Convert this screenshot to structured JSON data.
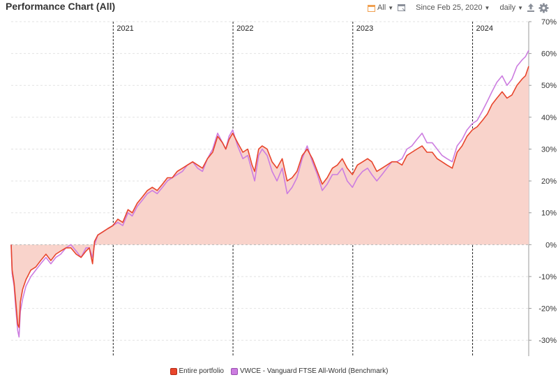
{
  "header": {
    "title": "Performance Chart (All)",
    "range_label": "All",
    "since_label": "Since Feb 25, 2020",
    "interval_label": "daily"
  },
  "colors": {
    "portfolio": "#e8452c",
    "portfolio_fill": "#f9d3cb",
    "benchmark": "#cc7de0",
    "grid": "#e2e2e2",
    "year_line": "#222222",
    "accent_orange": "#f0a050",
    "icon_grey": "#8a8f99"
  },
  "icons": [
    "calendar-icon",
    "date-range-icon",
    "export-icon",
    "gear-icon"
  ],
  "chart_data": {
    "type": "line",
    "y_unit": "%",
    "y_range": [
      -35,
      70
    ],
    "y_ticks": [
      70,
      60,
      50,
      40,
      30,
      20,
      10,
      0,
      -10,
      -20,
      -30
    ],
    "y_tick_labels": [
      "70%",
      "60%",
      "50%",
      "40%",
      "30%",
      "20%",
      "10%",
      "0%",
      "-10%",
      "-20%",
      "-30%"
    ],
    "y_axis_position": "right",
    "x_range": [
      "2020-02-25",
      "2024-06-20"
    ],
    "year_markers": [
      {
        "date": "2021-01-01",
        "label": "2021"
      },
      {
        "date": "2022-01-01",
        "label": "2022"
      },
      {
        "date": "2023-01-01",
        "label": "2023"
      },
      {
        "date": "2024-01-01",
        "label": "2024"
      }
    ],
    "grid": true,
    "legend_position": "bottom",
    "series": [
      {
        "name": "Entire portfolio",
        "filled": true,
        "points": [
          [
            "2020-02-25",
            0
          ],
          [
            "2020-02-28",
            -8
          ],
          [
            "2020-03-05",
            -12
          ],
          [
            "2020-03-10",
            -18
          ],
          [
            "2020-03-16",
            -25
          ],
          [
            "2020-03-20",
            -26
          ],
          [
            "2020-03-24",
            -18
          ],
          [
            "2020-03-31",
            -14
          ],
          [
            "2020-04-10",
            -11
          ],
          [
            "2020-04-25",
            -8
          ],
          [
            "2020-05-10",
            -7
          ],
          [
            "2020-05-25",
            -5
          ],
          [
            "2020-06-10",
            -3
          ],
          [
            "2020-06-25",
            -5
          ],
          [
            "2020-07-10",
            -3
          ],
          [
            "2020-07-25",
            -2
          ],
          [
            "2020-08-10",
            -1
          ],
          [
            "2020-08-25",
            -1
          ],
          [
            "2020-09-10",
            -3
          ],
          [
            "2020-09-25",
            -4
          ],
          [
            "2020-10-10",
            -2
          ],
          [
            "2020-10-20",
            -1
          ],
          [
            "2020-10-30",
            -6
          ],
          [
            "2020-11-05",
            1
          ],
          [
            "2020-11-15",
            3
          ],
          [
            "2020-11-30",
            4
          ],
          [
            "2020-12-15",
            5
          ],
          [
            "2020-12-31",
            6
          ],
          [
            "2021-01-15",
            8
          ],
          [
            "2021-01-30",
            7
          ],
          [
            "2021-02-15",
            11
          ],
          [
            "2021-02-28",
            10
          ],
          [
            "2021-03-15",
            13
          ],
          [
            "2021-03-31",
            15
          ],
          [
            "2021-04-15",
            17
          ],
          [
            "2021-04-30",
            18
          ],
          [
            "2021-05-15",
            17
          ],
          [
            "2021-05-31",
            19
          ],
          [
            "2021-06-15",
            21
          ],
          [
            "2021-06-30",
            21
          ],
          [
            "2021-07-15",
            23
          ],
          [
            "2021-07-31",
            24
          ],
          [
            "2021-08-15",
            25
          ],
          [
            "2021-08-31",
            26
          ],
          [
            "2021-09-15",
            25
          ],
          [
            "2021-09-30",
            24
          ],
          [
            "2021-10-15",
            27
          ],
          [
            "2021-10-31",
            29
          ],
          [
            "2021-11-15",
            34
          ],
          [
            "2021-11-30",
            32
          ],
          [
            "2021-12-10",
            30
          ],
          [
            "2021-12-20",
            33
          ],
          [
            "2021-12-31",
            35
          ],
          [
            "2022-01-15",
            32
          ],
          [
            "2022-01-31",
            29
          ],
          [
            "2022-02-15",
            30
          ],
          [
            "2022-02-28",
            25
          ],
          [
            "2022-03-08",
            23
          ],
          [
            "2022-03-20",
            30
          ],
          [
            "2022-03-31",
            31
          ],
          [
            "2022-04-15",
            30
          ],
          [
            "2022-04-30",
            26
          ],
          [
            "2022-05-15",
            24
          ],
          [
            "2022-05-31",
            27
          ],
          [
            "2022-06-15",
            20
          ],
          [
            "2022-06-30",
            21
          ],
          [
            "2022-07-15",
            23
          ],
          [
            "2022-07-31",
            28
          ],
          [
            "2022-08-15",
            30
          ],
          [
            "2022-08-31",
            27
          ],
          [
            "2022-09-15",
            23
          ],
          [
            "2022-09-30",
            19
          ],
          [
            "2022-10-15",
            21
          ],
          [
            "2022-10-31",
            24
          ],
          [
            "2022-11-15",
            25
          ],
          [
            "2022-11-30",
            27
          ],
          [
            "2022-12-15",
            24
          ],
          [
            "2022-12-31",
            22
          ],
          [
            "2023-01-15",
            25
          ],
          [
            "2023-01-31",
            26
          ],
          [
            "2023-02-15",
            27
          ],
          [
            "2023-02-28",
            26
          ],
          [
            "2023-03-15",
            23
          ],
          [
            "2023-03-31",
            24
          ],
          [
            "2023-04-15",
            25
          ],
          [
            "2023-04-30",
            26
          ],
          [
            "2023-05-15",
            26
          ],
          [
            "2023-05-31",
            25
          ],
          [
            "2023-06-15",
            28
          ],
          [
            "2023-06-30",
            29
          ],
          [
            "2023-07-15",
            30
          ],
          [
            "2023-07-31",
            31
          ],
          [
            "2023-08-15",
            29
          ],
          [
            "2023-08-31",
            29
          ],
          [
            "2023-09-15",
            27
          ],
          [
            "2023-09-30",
            26
          ],
          [
            "2023-10-15",
            25
          ],
          [
            "2023-10-31",
            24
          ],
          [
            "2023-11-15",
            29
          ],
          [
            "2023-11-30",
            31
          ],
          [
            "2023-12-15",
            34
          ],
          [
            "2023-12-31",
            36
          ],
          [
            "2024-01-15",
            37
          ],
          [
            "2024-01-31",
            39
          ],
          [
            "2024-02-15",
            41
          ],
          [
            "2024-02-29",
            44
          ],
          [
            "2024-03-15",
            46
          ],
          [
            "2024-03-31",
            48
          ],
          [
            "2024-04-15",
            46
          ],
          [
            "2024-04-30",
            47
          ],
          [
            "2024-05-15",
            50
          ],
          [
            "2024-05-31",
            52
          ],
          [
            "2024-06-10",
            53
          ],
          [
            "2024-06-20",
            56
          ]
        ]
      },
      {
        "name": "VWCE - Vanguard FTSE All-World (Benchmark)",
        "filled": false,
        "points": [
          [
            "2020-02-25",
            0
          ],
          [
            "2020-02-28",
            -9
          ],
          [
            "2020-03-05",
            -13
          ],
          [
            "2020-03-10",
            -20
          ],
          [
            "2020-03-16",
            -27
          ],
          [
            "2020-03-20",
            -29
          ],
          [
            "2020-03-24",
            -21
          ],
          [
            "2020-03-31",
            -17
          ],
          [
            "2020-04-10",
            -13
          ],
          [
            "2020-04-25",
            -10
          ],
          [
            "2020-05-10",
            -8
          ],
          [
            "2020-05-25",
            -6
          ],
          [
            "2020-06-10",
            -4
          ],
          [
            "2020-06-25",
            -6
          ],
          [
            "2020-07-10",
            -4
          ],
          [
            "2020-07-25",
            -3
          ],
          [
            "2020-08-10",
            -1
          ],
          [
            "2020-08-25",
            0
          ],
          [
            "2020-09-10",
            -2
          ],
          [
            "2020-09-25",
            -4
          ],
          [
            "2020-10-10",
            -1
          ],
          [
            "2020-10-20",
            -1
          ],
          [
            "2020-10-30",
            -4
          ],
          [
            "2020-11-05",
            0
          ],
          [
            "2020-11-15",
            3
          ],
          [
            "2020-11-30",
            4
          ],
          [
            "2020-12-15",
            5
          ],
          [
            "2020-12-31",
            6
          ],
          [
            "2021-01-15",
            7
          ],
          [
            "2021-01-30",
            6
          ],
          [
            "2021-02-15",
            10
          ],
          [
            "2021-02-28",
            9
          ],
          [
            "2021-03-15",
            12
          ],
          [
            "2021-03-31",
            14
          ],
          [
            "2021-04-15",
            16
          ],
          [
            "2021-04-30",
            17
          ],
          [
            "2021-05-15",
            16
          ],
          [
            "2021-05-31",
            18
          ],
          [
            "2021-06-15",
            20
          ],
          [
            "2021-06-30",
            21
          ],
          [
            "2021-07-15",
            22
          ],
          [
            "2021-07-31",
            23
          ],
          [
            "2021-08-15",
            25
          ],
          [
            "2021-08-31",
            26
          ],
          [
            "2021-09-15",
            24
          ],
          [
            "2021-09-30",
            23
          ],
          [
            "2021-10-15",
            27
          ],
          [
            "2021-10-31",
            30
          ],
          [
            "2021-11-15",
            35
          ],
          [
            "2021-11-30",
            32
          ],
          [
            "2021-12-10",
            30
          ],
          [
            "2021-12-20",
            34
          ],
          [
            "2021-12-31",
            36
          ],
          [
            "2022-01-15",
            31
          ],
          [
            "2022-01-31",
            27
          ],
          [
            "2022-02-15",
            28
          ],
          [
            "2022-02-28",
            23
          ],
          [
            "2022-03-08",
            20
          ],
          [
            "2022-03-20",
            28
          ],
          [
            "2022-03-31",
            30
          ],
          [
            "2022-04-15",
            28
          ],
          [
            "2022-04-30",
            23
          ],
          [
            "2022-05-15",
            20
          ],
          [
            "2022-05-31",
            24
          ],
          [
            "2022-06-15",
            16
          ],
          [
            "2022-06-30",
            18
          ],
          [
            "2022-07-15",
            21
          ],
          [
            "2022-07-31",
            27
          ],
          [
            "2022-08-15",
            31
          ],
          [
            "2022-08-31",
            26
          ],
          [
            "2022-09-15",
            22
          ],
          [
            "2022-09-30",
            17
          ],
          [
            "2022-10-15",
            19
          ],
          [
            "2022-10-31",
            22
          ],
          [
            "2022-11-15",
            22
          ],
          [
            "2022-11-30",
            24
          ],
          [
            "2022-12-15",
            20
          ],
          [
            "2022-12-31",
            18
          ],
          [
            "2023-01-15",
            21
          ],
          [
            "2023-01-31",
            23
          ],
          [
            "2023-02-15",
            24
          ],
          [
            "2023-02-28",
            22
          ],
          [
            "2023-03-15",
            20
          ],
          [
            "2023-03-31",
            22
          ],
          [
            "2023-04-15",
            24
          ],
          [
            "2023-04-30",
            26
          ],
          [
            "2023-05-15",
            26
          ],
          [
            "2023-05-31",
            27
          ],
          [
            "2023-06-15",
            30
          ],
          [
            "2023-06-30",
            31
          ],
          [
            "2023-07-15",
            33
          ],
          [
            "2023-07-31",
            35
          ],
          [
            "2023-08-15",
            32
          ],
          [
            "2023-08-31",
            32
          ],
          [
            "2023-09-15",
            30
          ],
          [
            "2023-09-30",
            28
          ],
          [
            "2023-10-15",
            27
          ],
          [
            "2023-10-31",
            26
          ],
          [
            "2023-11-15",
            31
          ],
          [
            "2023-11-30",
            33
          ],
          [
            "2023-12-15",
            36
          ],
          [
            "2023-12-31",
            38
          ],
          [
            "2024-01-15",
            39
          ],
          [
            "2024-01-31",
            42
          ],
          [
            "2024-02-15",
            45
          ],
          [
            "2024-02-29",
            48
          ],
          [
            "2024-03-15",
            51
          ],
          [
            "2024-03-31",
            53
          ],
          [
            "2024-04-15",
            50
          ],
          [
            "2024-04-30",
            52
          ],
          [
            "2024-05-15",
            56
          ],
          [
            "2024-05-31",
            58
          ],
          [
            "2024-06-10",
            59
          ],
          [
            "2024-06-20",
            61
          ]
        ]
      }
    ]
  }
}
